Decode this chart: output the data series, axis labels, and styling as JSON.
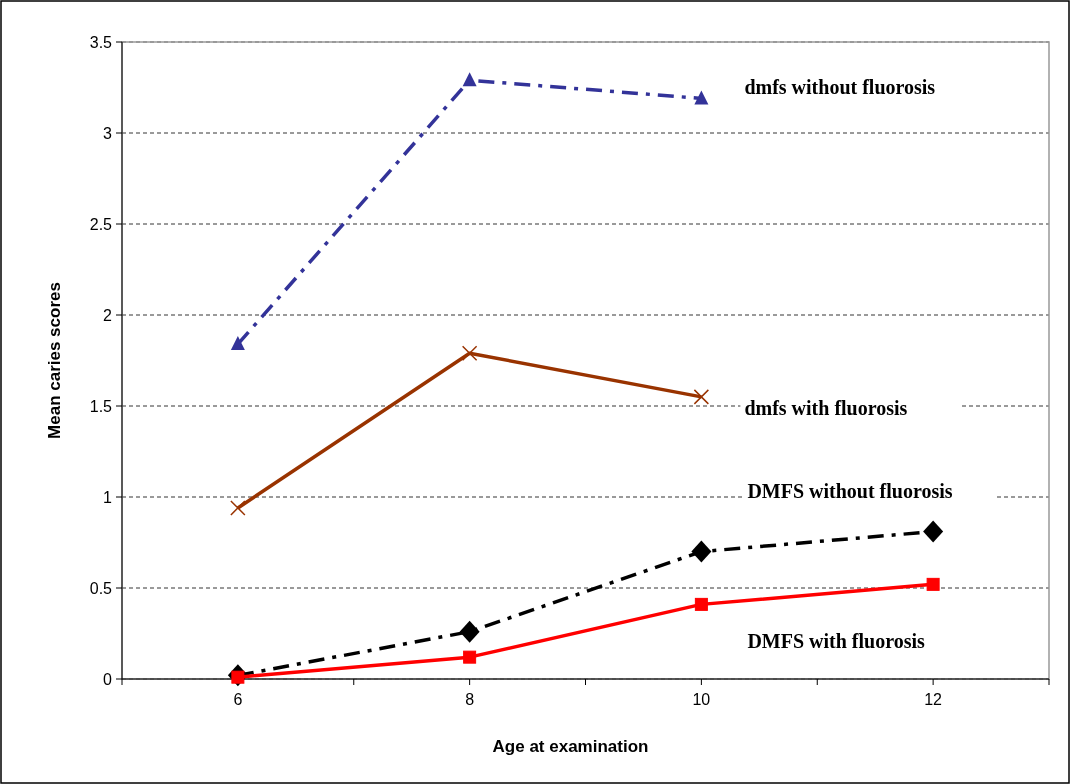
{
  "chart_data": {
    "type": "line",
    "xlabel": "Age at examination",
    "ylabel": "Mean caries scores",
    "x": [
      6,
      8,
      10,
      12
    ],
    "xlim": [
      5,
      13
    ],
    "xticks": [
      {
        "value": 5,
        "label": null
      },
      6,
      {
        "value": 7,
        "label": null
      },
      8,
      {
        "value": 9,
        "label": null
      },
      10,
      {
        "value": 11,
        "label": null
      },
      12,
      {
        "value": 13,
        "label": null
      }
    ],
    "ylim": [
      0,
      3.5
    ],
    "yticks": [
      0,
      0.5,
      1,
      1.5,
      2,
      2.5,
      3,
      3.5
    ],
    "grid": "y",
    "legend": false,
    "series": [
      {
        "name": "dmfs without fluorosis",
        "color": "#333399",
        "values": [
          1.84,
          3.29,
          3.19,
          null
        ],
        "line_style": "dashed",
        "marker": "triangle"
      },
      {
        "name": "dmfs with fluorosis",
        "color": "#993300",
        "values": [
          0.94,
          1.79,
          1.55,
          null
        ],
        "line_style": "solid",
        "marker": "cross"
      },
      {
        "name": "DMFS without fluorosis",
        "color": "#000000",
        "values": [
          0.02,
          0.26,
          0.7,
          0.81
        ],
        "line_style": "dashed",
        "marker": "diamond"
      },
      {
        "name": "DMFS with fluorosis",
        "color": "#ff0000",
        "values": [
          0.01,
          0.12,
          0.41,
          0.52
        ],
        "line_style": "solid",
        "marker": "square"
      }
    ]
  }
}
